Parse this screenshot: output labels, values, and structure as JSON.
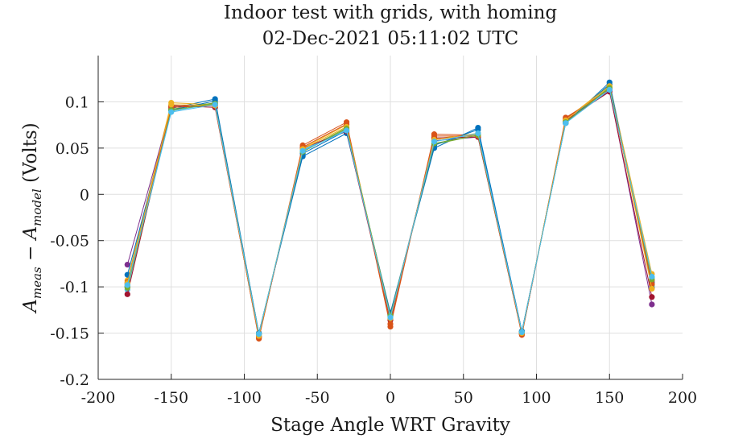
{
  "chart_data": {
    "type": "line",
    "title": "Indoor test with grids, with homing",
    "subtitle": "02-Dec-2021 05:11:02 UTC",
    "xlabel": "Stage Angle WRT Gravity",
    "ylabel": "A_meas − A_model (Volts)",
    "ylabel_parts": {
      "a1": "A",
      "s1": "meas",
      "op": " − ",
      "a2": "A",
      "s2": "model",
      "rest": " (Volts)"
    },
    "xlim": [
      -200,
      200
    ],
    "ylim": [
      -0.2,
      0.15
    ],
    "xticks": [
      -200,
      -150,
      -100,
      -50,
      0,
      50,
      100,
      150,
      200
    ],
    "xtick_labels": [
      "-200",
      "-150",
      "-100",
      "-50",
      "0",
      "50",
      "100",
      "150",
      "200"
    ],
    "yticks": [
      -0.2,
      -0.15,
      -0.1,
      -0.05,
      0,
      0.05,
      0.1
    ],
    "ytick_labels": [
      "-0.2",
      "-0.15",
      "-0.1",
      "-0.05",
      "0",
      "0.05",
      "0.1"
    ],
    "grid": true,
    "legend": "none",
    "x": [
      -180,
      -150,
      -120,
      -90,
      -60,
      -30,
      0,
      30,
      60,
      90,
      120,
      150,
      179
    ],
    "series": [
      {
        "color": "#0072BD",
        "values": [
          -0.1,
          0.093,
          0.103,
          -0.15,
          0.041,
          0.066,
          -0.128,
          0.05,
          0.072,
          -0.148,
          0.077,
          0.121,
          -0.095
        ]
      },
      {
        "color": "#D95319",
        "values": [
          -0.097,
          0.095,
          0.098,
          -0.156,
          0.053,
          0.078,
          -0.143,
          0.065,
          0.064,
          -0.152,
          0.083,
          0.113,
          -0.093
        ]
      },
      {
        "color": "#EDB120",
        "values": [
          -0.093,
          0.099,
          0.097,
          -0.152,
          0.05,
          0.075,
          -0.135,
          0.06,
          0.066,
          -0.15,
          0.081,
          0.118,
          -0.086
        ]
      },
      {
        "color": "#7E2F8E",
        "values": [
          -0.076,
          0.094,
          0.096,
          -0.154,
          0.048,
          0.07,
          -0.132,
          0.058,
          0.062,
          -0.149,
          0.079,
          0.112,
          -0.119
        ]
      },
      {
        "color": "#77AC30",
        "values": [
          -0.099,
          0.092,
          0.099,
          -0.151,
          0.047,
          0.072,
          -0.131,
          0.054,
          0.064,
          -0.149,
          0.078,
          0.116,
          -0.098
        ]
      },
      {
        "color": "#4DBEEE",
        "values": [
          -0.103,
          0.09,
          0.098,
          -0.152,
          0.048,
          0.07,
          -0.132,
          0.057,
          0.065,
          -0.149,
          0.078,
          0.114,
          -0.09
        ]
      },
      {
        "color": "#A2142F",
        "values": [
          -0.108,
          0.096,
          0.094,
          -0.154,
          0.05,
          0.068,
          -0.136,
          0.061,
          0.062,
          -0.151,
          0.08,
          0.111,
          -0.111
        ]
      },
      {
        "color": "#0072BD",
        "values": [
          -0.087,
          0.091,
          0.101,
          -0.15,
          0.044,
          0.069,
          -0.13,
          0.053,
          0.07,
          -0.148,
          0.077,
          0.119,
          -0.101
        ]
      },
      {
        "color": "#D95319",
        "values": [
          -0.095,
          0.094,
          0.096,
          -0.155,
          0.051,
          0.076,
          -0.14,
          0.063,
          0.063,
          -0.151,
          0.082,
          0.114,
          -0.097
        ]
      },
      {
        "color": "#EDB120",
        "values": [
          -0.096,
          0.097,
          0.096,
          -0.153,
          0.049,
          0.073,
          -0.134,
          0.059,
          0.065,
          -0.15,
          0.08,
          0.117,
          -0.102
        ]
      },
      {
        "color": "#77AC30",
        "values": [
          -0.101,
          0.091,
          0.098,
          -0.151,
          0.046,
          0.071,
          -0.131,
          0.055,
          0.064,
          -0.149,
          0.078,
          0.115,
          -0.092
        ]
      },
      {
        "color": "#4DBEEE",
        "values": [
          -0.098,
          0.089,
          0.097,
          -0.151,
          0.047,
          0.069,
          -0.133,
          0.057,
          0.066,
          -0.149,
          0.077,
          0.113,
          -0.089
        ]
      }
    ]
  }
}
